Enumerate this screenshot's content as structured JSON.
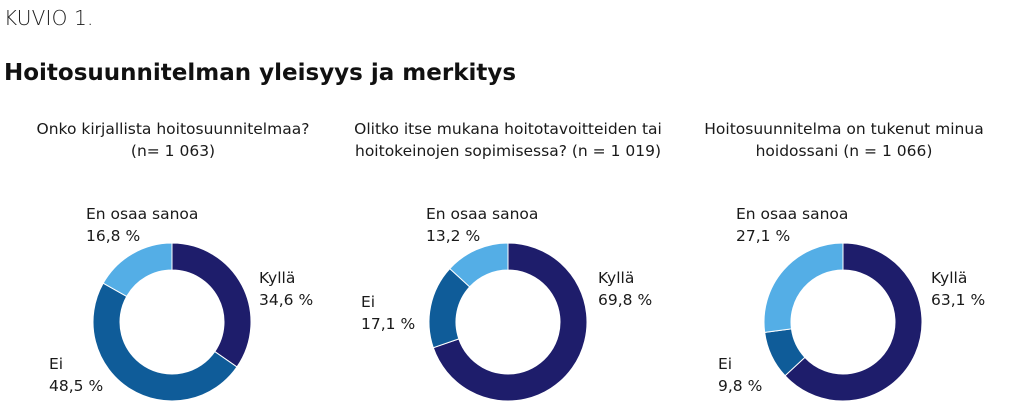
{
  "figure": {
    "label": "KUVIO 1.",
    "title": "Hoitosuunnitelman yleisyys ja merkitys"
  },
  "colors": {
    "kylla": "#1e1d6b",
    "ei": "#0f5c99",
    "en_osaa_sanoa": "#54aee6"
  },
  "chart_data": [
    {
      "type": "pie",
      "title_lines": [
        "Onko kirjallista hoitosuunnitelmaa?",
        "(n= 1 063)"
      ],
      "slices": [
        {
          "name": "Kyllä",
          "value": 34.6,
          "value_label": "34,6 %",
          "color_key": "kylla"
        },
        {
          "name": "Ei",
          "value": 48.5,
          "value_label": "48,5 %",
          "color_key": "ei"
        },
        {
          "name": "En osaa sanoa",
          "value": 16.8,
          "value_label": "16,8 %",
          "color_key": "en_osaa_sanoa"
        }
      ]
    },
    {
      "type": "pie",
      "title_lines": [
        "Olitko itse mukana hoitotavoitteiden tai",
        "hoitokeinojen sopimisessa? (n = 1 019)"
      ],
      "slices": [
        {
          "name": "Kyllä",
          "value": 69.8,
          "value_label": "69,8 %",
          "color_key": "kylla"
        },
        {
          "name": "Ei",
          "value": 17.1,
          "value_label": "17,1 %",
          "color_key": "ei"
        },
        {
          "name": "En osaa sanoa",
          "value": 13.2,
          "value_label": "13,2 %",
          "color_key": "en_osaa_sanoa"
        }
      ]
    },
    {
      "type": "pie",
      "title_lines": [
        "Hoitosuunnitelma on tukenut minua",
        "hoidossani (n = 1 066)"
      ],
      "slices": [
        {
          "name": "Kyllä",
          "value": 63.1,
          "value_label": "63,1 %",
          "color_key": "kylla"
        },
        {
          "name": "Ei",
          "value": 9.8,
          "value_label": "9,8 %",
          "color_key": "ei"
        },
        {
          "name": "En osaa sanoa",
          "value": 27.1,
          "value_label": "27,1 %",
          "color_key": "en_osaa_sanoa"
        }
      ]
    }
  ]
}
